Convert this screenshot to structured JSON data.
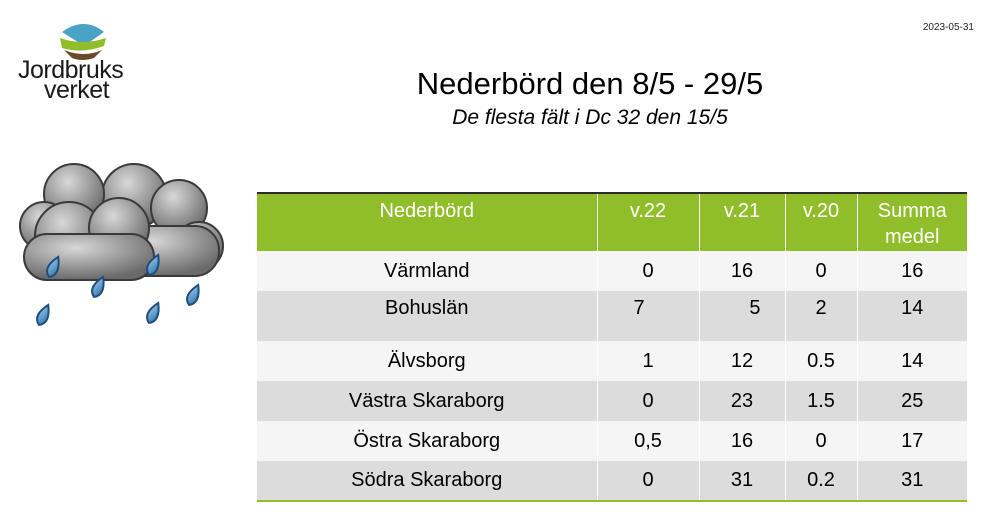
{
  "header": {
    "date": "2023-05-31",
    "logo": {
      "line1": "Jordbruks",
      "line2": "verket",
      "icon": "jordbruksverket-logo-icon"
    },
    "title": "Nederbörd den 8/5 - 29/5",
    "subtitle": "De flesta fält i Dc 32 den 15/5"
  },
  "illustration": {
    "icon": "rain-cloud-icon"
  },
  "colors": {
    "header_green": "#8fbe2a",
    "row_light": "#f5f5f5",
    "row_dark": "#dcdcdc"
  },
  "table": {
    "columns": [
      "Nederbörd",
      "v.22",
      "v.21",
      "v.20",
      "Summa\nmedel"
    ],
    "rows": [
      {
        "region": "Värmland",
        "v22": "0",
        "v21": "16",
        "v20": "0",
        "sum": "16"
      },
      {
        "region": "Bohuslän",
        "v22": "7",
        "v21": "5",
        "v20": "2",
        "sum": "14"
      },
      {
        "region": "Älvsborg",
        "v22": "1",
        "v21": "12",
        "v20": "0.5",
        "sum": "14"
      },
      {
        "region": "Västra Skaraborg",
        "v22": "0",
        "v21": "23",
        "v20": "1.5",
        "sum": "25"
      },
      {
        "region": "Östra Skaraborg",
        "v22": "0,5",
        "v21": "16",
        "v20": "0",
        "sum": "17"
      },
      {
        "region": "Södra Skaraborg",
        "v22": "0",
        "v21": "31",
        "v20": "0.2",
        "sum": "31"
      }
    ]
  }
}
